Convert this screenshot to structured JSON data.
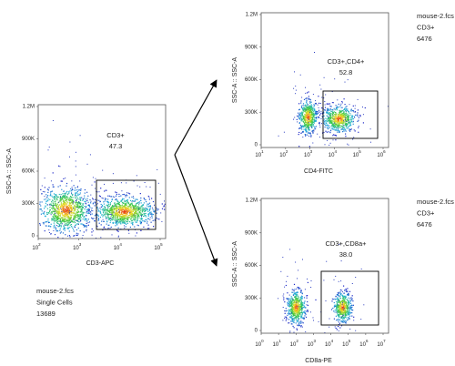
{
  "panels": [
    {
      "y_label": "SSC-A :: SSC-A",
      "y_ticks": [
        "1.2M",
        "900K",
        "600K",
        "300K",
        "0"
      ],
      "x_ticks": [
        {
          "base": "10",
          "exp": "2"
        },
        {
          "base": "10",
          "exp": "3"
        },
        {
          "base": "10",
          "exp": "4"
        },
        {
          "base": "10",
          "exp": "5"
        }
      ],
      "x_label": "CD3-APC",
      "gate": {
        "name": "CD3+",
        "percent": "47.3"
      },
      "info": [
        "mouse-2.fcs",
        "Single Cells",
        "13689"
      ]
    },
    {
      "y_label": "SSC-A :: SSC-A",
      "y_ticks": [
        "1.2M",
        "900K",
        "600K",
        "300K",
        "0"
      ],
      "x_ticks": [
        {
          "base": "10",
          "exp": "1"
        },
        {
          "base": "10",
          "exp": "2"
        },
        {
          "base": "10",
          "exp": "3"
        },
        {
          "base": "10",
          "exp": "4"
        },
        {
          "base": "10",
          "exp": "5"
        },
        {
          "base": "10",
          "exp": "6"
        }
      ],
      "x_label": "CD4-FITC",
      "gate": {
        "name": "CD3+,CD4+",
        "percent": "52.8"
      },
      "info": [
        "mouse-2.fcs",
        "CD3+",
        "6476"
      ]
    },
    {
      "y_label": "SSC-A :: SSC-A",
      "y_ticks": [
        "1.2M",
        "900K",
        "600K",
        "300K",
        "0"
      ],
      "x_ticks": [
        {
          "base": "10",
          "exp": "0"
        },
        {
          "base": "10",
          "exp": "1"
        },
        {
          "base": "10",
          "exp": "2"
        },
        {
          "base": "10",
          "exp": "3"
        },
        {
          "base": "10",
          "exp": "4"
        },
        {
          "base": "10",
          "exp": "5"
        },
        {
          "base": "10",
          "exp": "6"
        },
        {
          "base": "10",
          "exp": "7"
        }
      ],
      "x_label": "CD8a-PE",
      "gate": {
        "name": "CD3+,CD8a+",
        "percent": "38.0"
      },
      "info": [
        "mouse-2.fcs",
        "CD3+",
        "6476"
      ]
    }
  ]
}
